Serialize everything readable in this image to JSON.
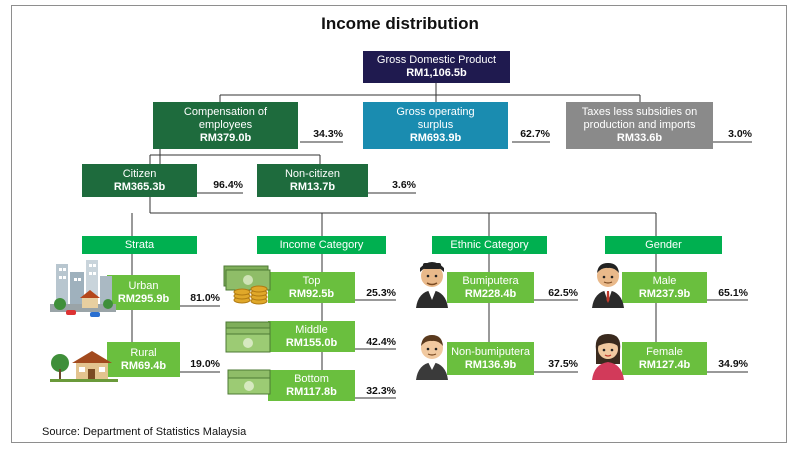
{
  "title": "Income distribution",
  "source": "Source: Department of Statistics Malaysia",
  "gdp": {
    "label": "Gross Domestic Product",
    "value": "RM1,106.5b"
  },
  "compensation": {
    "label": "Compensation of employees",
    "value": "RM379.0b",
    "pct": "34.3%"
  },
  "surplus": {
    "label": "Gross operating surplus",
    "value": "RM693.9b",
    "pct": "62.7%"
  },
  "taxes": {
    "label": "Taxes less subsidies on production and imports",
    "value": "RM33.6b",
    "pct": "3.0%"
  },
  "citizen": {
    "label": "Citizen",
    "value": "RM365.3b",
    "pct": "96.4%"
  },
  "noncitizen": {
    "label": "Non-citizen",
    "value": "RM13.7b",
    "pct": "3.6%"
  },
  "strata": {
    "header": "Strata",
    "urban": {
      "label": "Urban",
      "value": "RM295.9b",
      "pct": "81.0%"
    },
    "rural": {
      "label": "Rural",
      "value": "RM69.4b",
      "pct": "19.0%"
    }
  },
  "income": {
    "header": "Income Category",
    "top": {
      "label": "Top",
      "value": "RM92.5b",
      "pct": "25.3%"
    },
    "middle": {
      "label": "Middle",
      "value": "RM155.0b",
      "pct": "42.4%"
    },
    "bottom": {
      "label": "Bottom",
      "value": "RM117.8b",
      "pct": "32.3%"
    }
  },
  "ethnic": {
    "header": "Ethnic Category",
    "bumi": {
      "label": "Bumiputera",
      "value": "RM228.4b",
      "pct": "62.5%"
    },
    "nonbumi": {
      "label": "Non-bumiputera",
      "value": "RM136.9b",
      "pct": "37.5%"
    }
  },
  "gender": {
    "header": "Gender",
    "male": {
      "label": "Male",
      "value": "RM237.9b",
      "pct": "65.1%"
    },
    "female": {
      "label": "Female",
      "value": "RM127.4b",
      "pct": "34.9%"
    }
  },
  "colors": {
    "navy": "#1f1a4f",
    "dark_green": "#1e6b3d",
    "teal": "#1a8cb0",
    "grey": "#8a8a8a",
    "green": "#00b050",
    "light_green": "#6abf3e"
  }
}
